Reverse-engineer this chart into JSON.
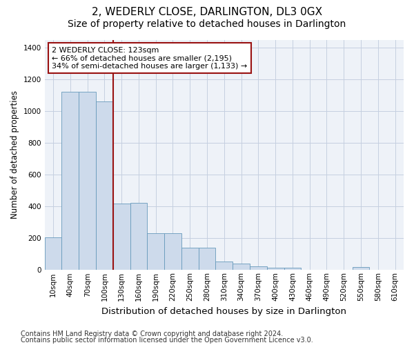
{
  "title": "2, WEDERLY CLOSE, DARLINGTON, DL3 0GX",
  "subtitle": "Size of property relative to detached houses in Darlington",
  "xlabel": "Distribution of detached houses by size in Darlington",
  "ylabel": "Number of detached properties",
  "footnote1": "Contains HM Land Registry data © Crown copyright and database right 2024.",
  "footnote2": "Contains public sector information licensed under the Open Government Licence v3.0.",
  "categories": [
    "10sqm",
    "40sqm",
    "70sqm",
    "100sqm",
    "130sqm",
    "160sqm",
    "190sqm",
    "220sqm",
    "250sqm",
    "280sqm",
    "310sqm",
    "340sqm",
    "370sqm",
    "400sqm",
    "430sqm",
    "460sqm",
    "490sqm",
    "520sqm",
    "550sqm",
    "580sqm",
    "610sqm"
  ],
  "values": [
    205,
    1120,
    1120,
    1060,
    420,
    425,
    230,
    232,
    140,
    142,
    55,
    40,
    25,
    15,
    13,
    0,
    0,
    0,
    20,
    0,
    0
  ],
  "bar_color": "#cddaeb",
  "bar_edge_color": "#6699bb",
  "vline_color": "#991111",
  "vline_pos": 3.5,
  "annotation_text": "2 WEDERLY CLOSE: 123sqm\n← 66% of detached houses are smaller (2,195)\n34% of semi-detached houses are larger (1,133) →",
  "annotation_box_color": "#ffffff",
  "annotation_box_edge": "#991111",
  "ylim": [
    0,
    1450
  ],
  "yticks": [
    0,
    200,
    400,
    600,
    800,
    1000,
    1200,
    1400
  ],
  "title_fontsize": 11,
  "subtitle_fontsize": 10,
  "xlabel_fontsize": 9.5,
  "ylabel_fontsize": 8.5,
  "tick_fontsize": 7.5,
  "annotation_fontsize": 8,
  "footnote_fontsize": 7,
  "bg_color": "#eef2f8",
  "grid_color": "#c5cfe0"
}
